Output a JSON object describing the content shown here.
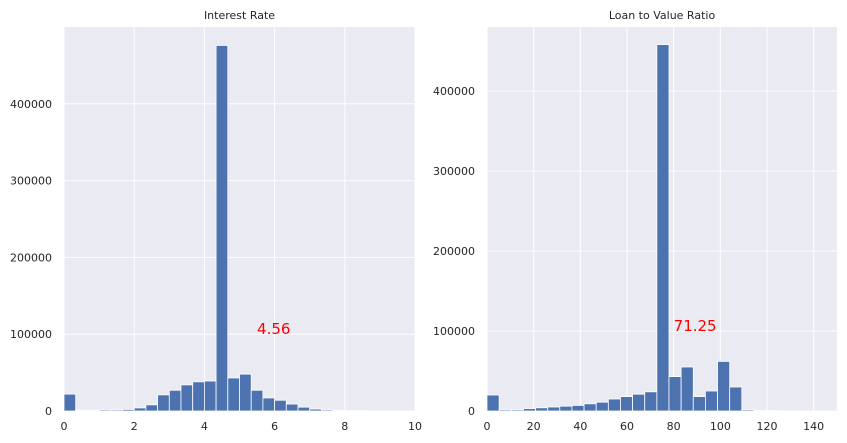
{
  "chart_data": [
    {
      "type": "bar",
      "title": "Interest Rate",
      "xlabel": "",
      "ylabel": "",
      "xlim": [
        0,
        10
      ],
      "ylim": [
        0,
        500000
      ],
      "xticks": [
        0,
        2,
        4,
        6,
        8,
        10
      ],
      "xtick_labels": [
        "0",
        "2",
        "4",
        "6",
        "8",
        "10"
      ],
      "yticks": [
        0,
        100000,
        200000,
        300000,
        400000
      ],
      "ytick_labels": [
        "0",
        "100000",
        "200000",
        "300000",
        "400000"
      ],
      "grid": true,
      "bar_color": "#4c72b0",
      "bin_width": 0.333,
      "bins": [
        {
          "x0": 0.0,
          "value": 22000
        },
        {
          "x0": 0.333,
          "value": 1000
        },
        {
          "x0": 0.667,
          "value": 1000
        },
        {
          "x0": 1.0,
          "value": 1500
        },
        {
          "x0": 1.333,
          "value": 1500
        },
        {
          "x0": 1.667,
          "value": 2000
        },
        {
          "x0": 2.0,
          "value": 4000
        },
        {
          "x0": 2.333,
          "value": 8000
        },
        {
          "x0": 2.667,
          "value": 21000
        },
        {
          "x0": 3.0,
          "value": 27000
        },
        {
          "x0": 3.333,
          "value": 34000
        },
        {
          "x0": 3.667,
          "value": 38000
        },
        {
          "x0": 4.0,
          "value": 39000
        },
        {
          "x0": 4.333,
          "value": 476000
        },
        {
          "x0": 4.667,
          "value": 43000
        },
        {
          "x0": 5.0,
          "value": 48000
        },
        {
          "x0": 5.333,
          "value": 27000
        },
        {
          "x0": 5.667,
          "value": 17000
        },
        {
          "x0": 6.0,
          "value": 14000
        },
        {
          "x0": 6.333,
          "value": 9000
        },
        {
          "x0": 6.667,
          "value": 5000
        },
        {
          "x0": 7.0,
          "value": 2500
        },
        {
          "x0": 7.333,
          "value": 1500
        },
        {
          "x0": 7.667,
          "value": 1000
        },
        {
          "x0": 8.0,
          "value": 500
        },
        {
          "x0": 8.333,
          "value": 500
        }
      ],
      "annotation": {
        "text": "4.56",
        "x": 5.5,
        "y": 100000,
        "color": "#ff0000"
      }
    },
    {
      "type": "bar",
      "title": "Loan to Value Ratio",
      "xlabel": "",
      "ylabel": "",
      "xlim": [
        0,
        150
      ],
      "ylim": [
        0,
        480000
      ],
      "xticks": [
        0,
        20,
        40,
        60,
        80,
        100,
        120,
        140
      ],
      "xtick_labels": [
        "0",
        "20",
        "40",
        "60",
        "80",
        "100",
        "120",
        "140"
      ],
      "yticks": [
        0,
        100000,
        200000,
        300000,
        400000
      ],
      "ytick_labels": [
        "0",
        "100000",
        "200000",
        "300000",
        "400000"
      ],
      "grid": true,
      "bar_color": "#4c72b0",
      "bin_width": 5.2,
      "bins": [
        {
          "x0": 0.0,
          "value": 20000
        },
        {
          "x0": 5.2,
          "value": 1500
        },
        {
          "x0": 10.4,
          "value": 1500
        },
        {
          "x0": 15.6,
          "value": 3000
        },
        {
          "x0": 20.8,
          "value": 4000
        },
        {
          "x0": 26.0,
          "value": 5000
        },
        {
          "x0": 31.2,
          "value": 6000
        },
        {
          "x0": 36.4,
          "value": 7000
        },
        {
          "x0": 41.6,
          "value": 9000
        },
        {
          "x0": 46.8,
          "value": 11000
        },
        {
          "x0": 52.0,
          "value": 15000
        },
        {
          "x0": 57.2,
          "value": 18000
        },
        {
          "x0": 62.4,
          "value": 21000
        },
        {
          "x0": 67.6,
          "value": 24000
        },
        {
          "x0": 72.8,
          "value": 458000
        },
        {
          "x0": 78.0,
          "value": 43000
        },
        {
          "x0": 83.2,
          "value": 55000
        },
        {
          "x0": 88.4,
          "value": 18000
        },
        {
          "x0": 93.6,
          "value": 25000
        },
        {
          "x0": 98.8,
          "value": 62000
        },
        {
          "x0": 104.0,
          "value": 30000
        },
        {
          "x0": 109.2,
          "value": 1500
        },
        {
          "x0": 114.4,
          "value": 500
        },
        {
          "x0": 119.6,
          "value": 500
        }
      ],
      "annotation": {
        "text": "71.25",
        "x": 80,
        "y": 100000,
        "color": "#ff0000"
      }
    }
  ]
}
